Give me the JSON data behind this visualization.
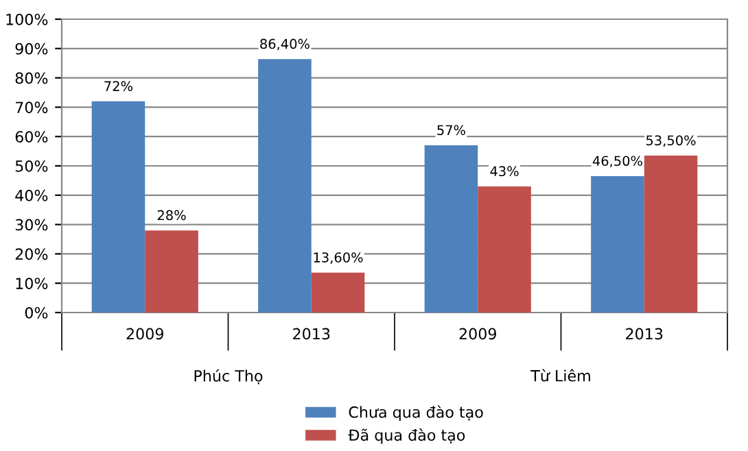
{
  "chart_data": {
    "type": "bar",
    "categories": [
      "2009",
      "2013",
      "2009",
      "2013"
    ],
    "series": [
      {
        "name": "Chưa qua đào tạo",
        "color": "#4f81bd",
        "values": [
          72,
          86.4,
          57,
          46.5
        ],
        "value_labels": [
          "72%",
          "86,40%",
          "57%",
          "46,50%"
        ]
      },
      {
        "name": "Đã qua đào tạo",
        "color": "#c0504d",
        "values": [
          28,
          13.6,
          43,
          53.5
        ],
        "value_labels": [
          "28%",
          "13,60%",
          "43%",
          "53,50%"
        ]
      }
    ],
    "annotations": [
      "Phúc Thọ",
      "Từ Liêm"
    ],
    "ylim": [
      0,
      100
    ],
    "yticks": [
      {
        "value": 0,
        "label": "0%"
      },
      {
        "value": 10,
        "label": "10%"
      },
      {
        "value": 20,
        "label": "20%"
      },
      {
        "value": 30,
        "label": "30%"
      },
      {
        "value": 40,
        "label": "40%"
      },
      {
        "value": 50,
        "label": "50%"
      },
      {
        "value": 60,
        "label": "60%"
      },
      {
        "value": 70,
        "label": "70%"
      },
      {
        "value": 80,
        "label": "80%"
      },
      {
        "value": 90,
        "label": "90%"
      },
      {
        "value": 100,
        "label": "100%"
      }
    ],
    "grid": "y",
    "legend": "bottom"
  }
}
